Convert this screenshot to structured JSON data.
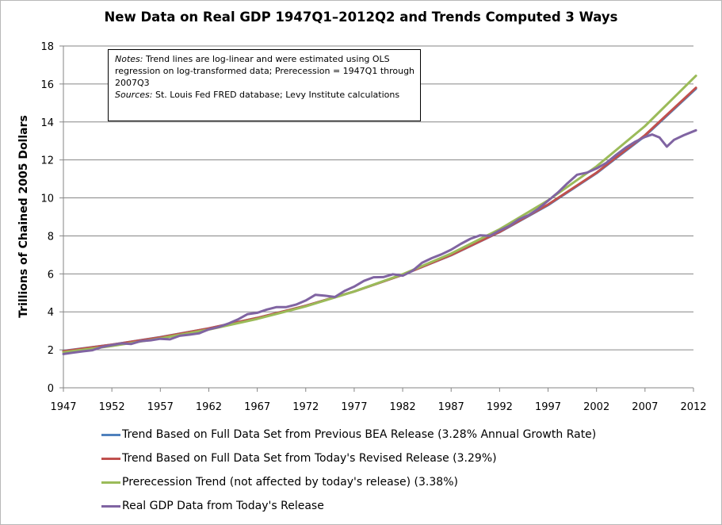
{
  "chart_data": {
    "type": "line",
    "title": "New Data on Real GDP 1947Q1–2012Q2  and Trends Computed 3 Ways",
    "xlabel": "",
    "ylabel": "Trillions of Chained 2005 Dollars",
    "xlim": [
      1947,
      2012
    ],
    "ylim": [
      0,
      18
    ],
    "x_ticks": [
      "1947",
      "1952",
      "1957",
      "1962",
      "1967",
      "1972",
      "1977",
      "1982",
      "1987",
      "1992",
      "1997",
      "2002",
      "2007",
      "2012"
    ],
    "y_ticks": [
      "0",
      "2",
      "4",
      "6",
      "8",
      "10",
      "12",
      "14",
      "16",
      "18"
    ],
    "grid": "horizontal",
    "legend_position": "bottom",
    "notes": {
      "notes_label": "Notes:",
      "notes_text": "Trend lines are log-linear and were estimated using OLS regression on log-transformed data; Prerecession = 1947Q1 through 2007Q3",
      "sources_label": "Sources:",
      "sources_text": "St. Louis Fed FRED database; Levy Institute calculations"
    },
    "series": [
      {
        "name": "Trend Based on Full Data Set from Previous BEA Release (3.28% Annual Growth Rate)",
        "color": "#4f81bd",
        "x": [
          1947,
          1952,
          1957,
          1962,
          1967,
          1972,
          1977,
          1982,
          1987,
          1992,
          1997,
          2002,
          2007,
          2012.25
        ],
        "y": [
          1.94,
          2.27,
          2.67,
          3.13,
          3.68,
          4.32,
          5.07,
          5.95,
          6.98,
          8.2,
          9.62,
          11.3,
          13.26,
          15.75
        ]
      },
      {
        "name": "Trend Based on Full Data Set from Today's Revised Release (3.29%)",
        "color": "#c0504d",
        "x": [
          1947,
          1952,
          1957,
          1962,
          1967,
          1972,
          1977,
          1982,
          1987,
          1992,
          1997,
          2002,
          2007,
          2012.25
        ],
        "y": [
          1.93,
          2.27,
          2.66,
          3.13,
          3.68,
          4.32,
          5.07,
          5.95,
          6.99,
          8.21,
          9.65,
          11.33,
          13.3,
          15.8
        ]
      },
      {
        "name": "Prerecession Trend (not affected by today's release) (3.38%)",
        "color": "#9bbb59",
        "x": [
          1947,
          1952,
          1957,
          1962,
          1967,
          1972,
          1977,
          1982,
          1987,
          1992,
          1997,
          2002,
          2007,
          2012.25
        ],
        "y": [
          1.87,
          2.2,
          2.6,
          3.07,
          3.63,
          4.29,
          5.07,
          5.98,
          7.07,
          8.35,
          9.87,
          11.66,
          13.78,
          16.43
        ]
      },
      {
        "name": "Real GDP Data from Today's Release",
        "color": "#8064a2",
        "x": [
          1947,
          1948,
          1949,
          1950,
          1951,
          1952,
          1953,
          1954,
          1955,
          1956,
          1957,
          1958,
          1959,
          1960,
          1961,
          1962,
          1963,
          1964,
          1965,
          1966,
          1967,
          1968,
          1969,
          1970,
          1971,
          1972,
          1973,
          1974,
          1975,
          1976,
          1977,
          1978,
          1979,
          1980,
          1981,
          1982,
          1983,
          1984,
          1985,
          1986,
          1987,
          1988,
          1989,
          1990,
          1991,
          1992,
          1993,
          1994,
          1995,
          1996,
          1997,
          1998,
          1999,
          2000,
          2001,
          2002,
          2003,
          2004,
          2005,
          2006,
          2007,
          2007.75,
          2008.5,
          2009.25,
          2010,
          2011,
          2012.25
        ],
        "y": [
          1.78,
          1.85,
          1.92,
          1.98,
          2.15,
          2.25,
          2.34,
          2.31,
          2.46,
          2.5,
          2.58,
          2.55,
          2.74,
          2.8,
          2.87,
          3.08,
          3.2,
          3.38,
          3.6,
          3.88,
          3.95,
          4.12,
          4.25,
          4.25,
          4.38,
          4.6,
          4.9,
          4.85,
          4.78,
          5.1,
          5.33,
          5.63,
          5.82,
          5.83,
          5.98,
          5.9,
          6.15,
          6.58,
          6.83,
          7.03,
          7.27,
          7.58,
          7.85,
          8.03,
          8.0,
          8.28,
          8.52,
          8.87,
          9.09,
          9.43,
          9.85,
          10.28,
          10.77,
          11.22,
          11.33,
          11.55,
          11.84,
          12.26,
          12.64,
          12.96,
          13.21,
          13.34,
          13.18,
          12.7,
          13.06,
          13.3,
          13.56
        ]
      }
    ]
  }
}
